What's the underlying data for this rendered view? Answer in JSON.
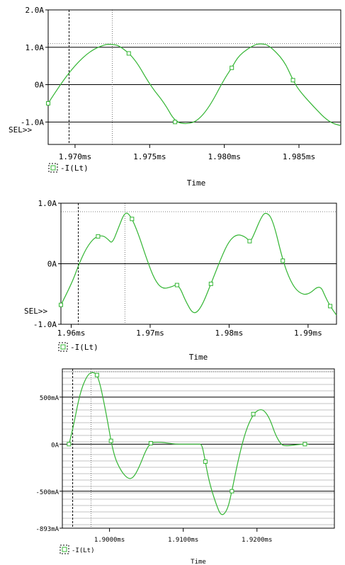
{
  "colors": {
    "trace": "#33b533",
    "axis": "#000000",
    "cursor": "#555555",
    "background": "#ffffff"
  },
  "chart_data": [
    {
      "type": "line",
      "title": "",
      "xlabel": "Time",
      "ylabel": "",
      "xlim": [
        1.9682,
        1.9878
      ],
      "ylim": [
        -1.6,
        2.0
      ],
      "x_ticks": [
        "1.970ms",
        "1.975ms",
        "1.980ms",
        "1.985ms"
      ],
      "y_ticks": [
        "2.0A",
        "1.0A",
        "0A",
        "-1.0A"
      ],
      "sel_label": "SEL>>",
      "legend": [
        {
          "name": "-I(Lt)",
          "marker": "square"
        }
      ],
      "grid": "horizontal at major ticks",
      "series": [
        {
          "name": "-I(Lt)",
          "x": [
            1.9682,
            1.969,
            1.97,
            1.971,
            1.972,
            1.9725,
            1.973,
            1.974,
            1.975,
            1.976,
            1.9767,
            1.9775,
            1.9782,
            1.979,
            1.98,
            1.9805,
            1.981,
            1.982,
            1.9825,
            1.983,
            1.984,
            1.9846,
            1.985,
            1.986,
            1.987,
            1.9878
          ],
          "y": [
            -0.5,
            0.0,
            0.52,
            0.9,
            1.08,
            1.08,
            1.04,
            0.7,
            0.0,
            -0.5,
            -1.0,
            -1.06,
            -0.97,
            -0.6,
            0.15,
            0.45,
            0.8,
            1.07,
            1.1,
            1.05,
            0.65,
            0.12,
            -0.15,
            -0.6,
            -1.0,
            -1.1
          ]
        }
      ],
      "markers_x": [
        1.9682,
        1.9736,
        1.9767,
        1.9805,
        1.9846
      ],
      "cursors_x": [
        1.9696,
        1.9725
      ],
      "cursor_level_y": 1.1
    },
    {
      "type": "line",
      "title": "",
      "xlabel": "Time",
      "ylabel": "",
      "xlim": [
        1.9587,
        1.9936
      ],
      "ylim": [
        -1.0,
        1.0
      ],
      "x_ticks": [
        "1.96ms",
        "1.97ms",
        "1.98ms",
        "1.99ms"
      ],
      "y_ticks": [
        "1.0A",
        "0A",
        "-1.0A"
      ],
      "sel_label": "SEL>>",
      "legend": [
        {
          "name": "-I(Lt)",
          "marker": "square"
        }
      ],
      "grid": "zero line",
      "series": [
        {
          "name": "-I(Lt)",
          "x": [
            1.9587,
            1.96,
            1.961,
            1.962,
            1.963,
            1.964,
            1.9647,
            1.9652,
            1.966,
            1.9668,
            1.9675,
            1.9685,
            1.9695,
            1.9705,
            1.9715,
            1.9728,
            1.9733,
            1.9738,
            1.9745,
            1.9755,
            1.9765,
            1.9778,
            1.979,
            1.98,
            1.981,
            1.982,
            1.9827,
            1.9832,
            1.984,
            1.9846,
            1.9855,
            1.9868,
            1.9878,
            1.9888,
            1.99,
            1.9915,
            1.9922,
            1.9928,
            1.9936
          ],
          "y": [
            -0.68,
            -0.35,
            0.0,
            0.28,
            0.44,
            0.47,
            0.4,
            0.33,
            0.6,
            0.86,
            0.8,
            0.5,
            0.1,
            -0.25,
            -0.42,
            -0.38,
            -0.34,
            -0.4,
            -0.62,
            -0.85,
            -0.72,
            -0.3,
            0.1,
            0.38,
            0.49,
            0.45,
            0.36,
            0.5,
            0.75,
            0.86,
            0.75,
            0.05,
            -0.3,
            -0.48,
            -0.52,
            -0.34,
            -0.55,
            -0.7,
            -0.85
          ]
        }
      ],
      "markers_x": [
        1.9587,
        1.9634,
        1.9677,
        1.9734,
        1.9777,
        1.9826,
        1.9868,
        1.9928
      ],
      "cursors_x": [
        1.9609,
        1.9668
      ],
      "cursor_level_y": 0.86
    },
    {
      "type": "line",
      "title": "",
      "xlabel": "Time",
      "ylabel": "",
      "xlim": [
        1.8936,
        1.9305
      ],
      "ylim": [
        -0.893,
        0.8
      ],
      "x_ticks": [
        "1.9000ms",
        "1.9100ms",
        "1.9200ms"
      ],
      "y_ticks": [
        "500mA",
        "0A",
        "-500mA",
        "-893mA"
      ],
      "legend": [
        {
          "name": "-I(Lt)",
          "marker": "square"
        }
      ],
      "grid": "dense horizontal lines",
      "series": [
        {
          "name": "-I(Lt)",
          "x": [
            1.8945,
            1.895,
            1.896,
            1.897,
            1.8978,
            1.8985,
            1.8995,
            1.9005,
            1.9015,
            1.9025,
            1.9032,
            1.904,
            1.905,
            1.9056,
            1.906,
            1.907,
            1.908,
            1.909,
            1.91,
            1.911,
            1.912,
            1.9125,
            1.9128,
            1.9135,
            1.9145,
            1.9152,
            1.916,
            1.9166,
            1.9175,
            1.9185,
            1.9195,
            1.9203,
            1.921,
            1.9218,
            1.9225,
            1.9233,
            1.924,
            1.926,
            1.927
          ],
          "y": [
            0.0,
            0.15,
            0.55,
            0.74,
            0.77,
            0.72,
            0.35,
            -0.1,
            -0.28,
            -0.37,
            -0.36,
            -0.25,
            -0.05,
            0.01,
            0.02,
            0.02,
            0.01,
            0.0,
            0.0,
            0.0,
            0.0,
            0.0,
            -0.1,
            -0.4,
            -0.65,
            -0.77,
            -0.7,
            -0.5,
            -0.15,
            0.15,
            0.32,
            0.37,
            0.36,
            0.26,
            0.1,
            -0.01,
            -0.02,
            0.0,
            0.0
          ]
        }
      ],
      "markers_x": [
        1.8945,
        1.8983,
        1.9002,
        1.9056,
        1.913,
        1.9166,
        1.9195,
        1.9265
      ],
      "cursors_x": [
        1.895,
        1.8975
      ],
      "cursor_level_y": 0.77
    }
  ]
}
